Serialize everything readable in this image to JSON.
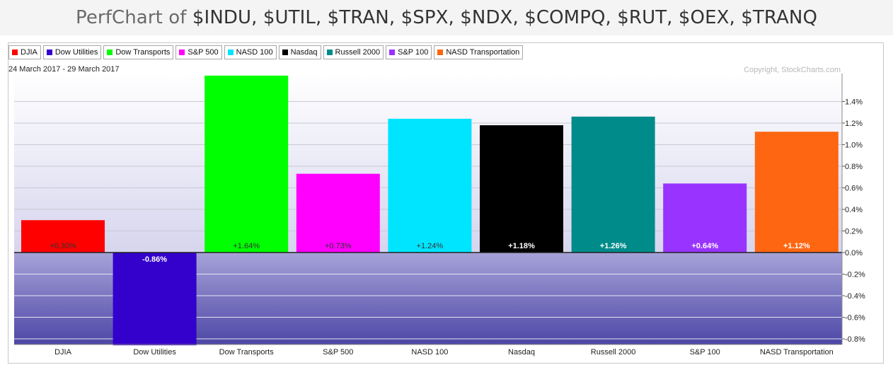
{
  "title": {
    "prefix": "PerfChart of ",
    "symbols": "$INDU, $UTIL, $TRAN, $SPX, $NDX, $COMPQ, $RUT, $OEX, $TRANQ"
  },
  "date_range": "24 March 2017 - 29 March 2017",
  "copyright": "Copyright, StockCharts.com",
  "chart_data": {
    "type": "bar",
    "categories": [
      "DJIA",
      "Dow Utilities",
      "Dow Transports",
      "S&P 500",
      "NASD 100",
      "Nasdaq",
      "Russell 2000",
      "S&P 100",
      "NASD Transportation"
    ],
    "values": [
      0.3,
      -0.86,
      1.64,
      0.73,
      1.24,
      1.18,
      1.26,
      0.64,
      1.12
    ],
    "value_labels": [
      "+0.30%",
      "-0.86%",
      "+1.64%",
      "+0.73%",
      "+1.24%",
      "+1.18%",
      "+1.26%",
      "+0.64%",
      "+1.12%"
    ],
    "colors": [
      "#ff0000",
      "#3300cc",
      "#00ff00",
      "#ff00ff",
      "#00e5ff",
      "#000000",
      "#008b8b",
      "#9933ff",
      "#ff6611"
    ],
    "y_ticks": [
      1.4,
      1.2,
      1.0,
      0.8,
      0.6,
      0.4,
      0.2,
      0.0,
      -0.2,
      -0.4,
      -0.6,
      -0.8
    ],
    "y_tick_labels": [
      "1.4%",
      "1.2%",
      "1.0%",
      "0.8%",
      "0.6%",
      "0.4%",
      "0.2%",
      "0.0%",
      "-0.2%",
      "-0.4%",
      "-0.6%",
      "-0.8%"
    ],
    "ylim": [
      -0.86,
      1.64
    ],
    "grid": true,
    "legend_position": "top-left",
    "xlabel": "",
    "ylabel": ""
  },
  "legend": [
    {
      "label": "DJIA",
      "color": "#ff0000"
    },
    {
      "label": "Dow Utilities",
      "color": "#3300cc"
    },
    {
      "label": "Dow Transports",
      "color": "#00ff00"
    },
    {
      "label": "S&P 500",
      "color": "#ff00ff"
    },
    {
      "label": "NASD 100",
      "color": "#00e5ff"
    },
    {
      "label": "Nasdaq",
      "color": "#000000"
    },
    {
      "label": "Russell 2000",
      "color": "#008b8b"
    },
    {
      "label": "S&P 100",
      "color": "#9933ff"
    },
    {
      "label": "NASD Transportation",
      "color": "#ff6611"
    }
  ]
}
